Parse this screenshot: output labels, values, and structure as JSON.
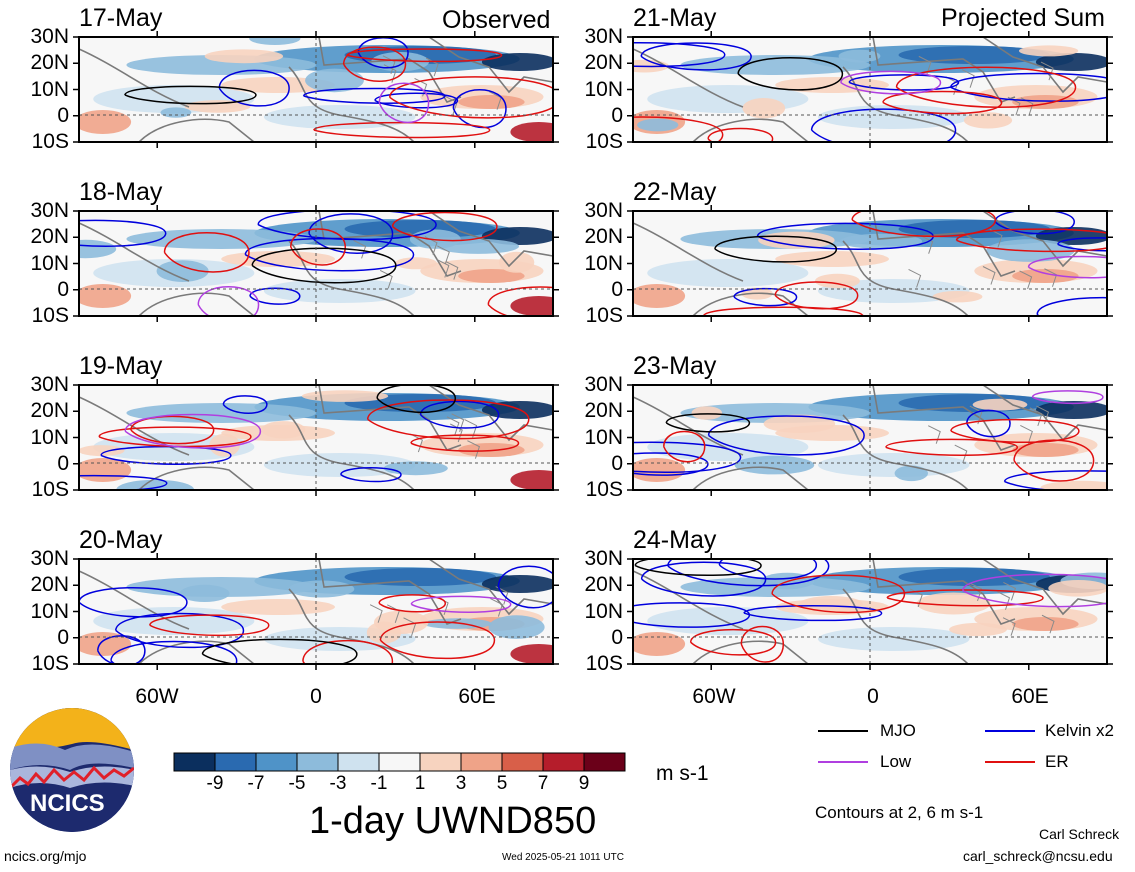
{
  "header": {
    "left_panel_label": "Observed",
    "right_panel_label": "Projected Sum"
  },
  "chart_data": [
    {
      "type": "heatmap",
      "title": "1-day UWND850",
      "units": "m s-1",
      "lat_ticks": [
        "30N",
        "20N",
        "10N",
        "0",
        "10S"
      ],
      "lon_ticks": [
        "60W",
        "0",
        "60E"
      ],
      "colorbar": {
        "labels": [
          "-9",
          "-7",
          "-5",
          "-3",
          "-1",
          "1",
          "3",
          "5",
          "7",
          "9"
        ],
        "colors": [
          "#0b2f5e",
          "#2a6ab0",
          "#4f93c8",
          "#8dbbdb",
          "#cfe2ef",
          "#f7f7f7",
          "#f7d3bf",
          "#efa388",
          "#d85f49",
          "#b51d2b",
          "#6b0019"
        ]
      },
      "panels": {
        "observed": [
          "17-May",
          "18-May",
          "19-May",
          "20-May"
        ],
        "projected": [
          "21-May",
          "22-May",
          "23-May",
          "24-May"
        ]
      },
      "legend": [
        {
          "label": "MJO",
          "color": "#000000"
        },
        {
          "label": "Kelvin x2",
          "color": "#0000dd"
        },
        {
          "label": "Low",
          "color": "#b03fe0"
        },
        {
          "label": "ER",
          "color": "#e01010"
        }
      ],
      "contour_note": "Contours at 2, 6 m s-1"
    }
  ],
  "footer": {
    "logo_text": "NCICS",
    "site": "ncics.org/mjo",
    "timestamp": "Wed 2025-05-21 1011 UTC",
    "author": "Carl Schreck",
    "email": "carl_schreck@ncsu.edu"
  }
}
